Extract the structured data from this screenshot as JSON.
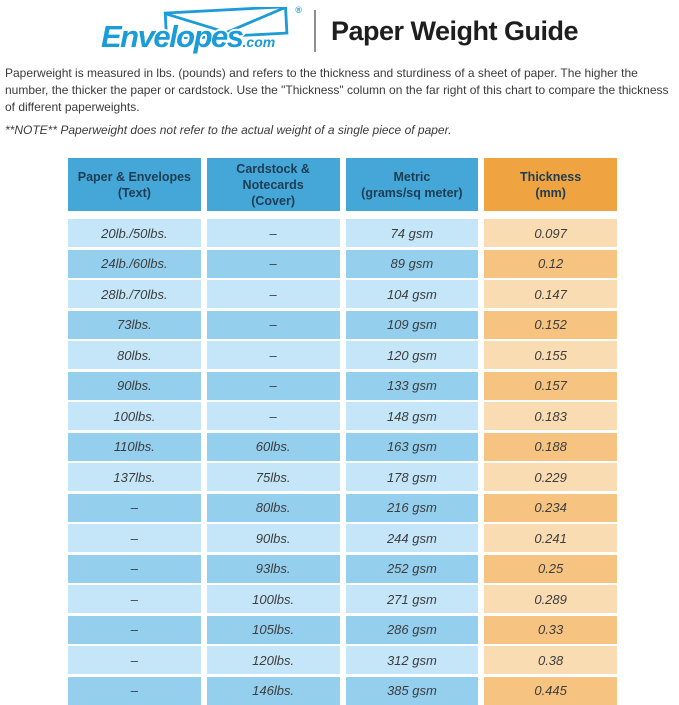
{
  "header": {
    "logo": {
      "brand": "Envelopes",
      "tld": ".com",
      "registered": "®",
      "color": "#1b9cd8"
    },
    "title": "Paper Weight Guide"
  },
  "intro": {
    "paragraph": "Paperweight is measured in lbs. (pounds) and refers to the thickness and sturdiness of a sheet of paper. The higher the number, the thicker the paper or cardstock. Use the \"Thickness\" column on the far right of this chart to compare the thickness of different paperweights.",
    "note": "**NOTE** Paperweight does not refer to the actual weight of a single piece of paper."
  },
  "table": {
    "headers": [
      {
        "line1": "Paper & Envelopes",
        "line2": "(Text)"
      },
      {
        "line1": "Cardstock & Notecards",
        "line2": "(Cover)"
      },
      {
        "line1": "Metric",
        "line2": "(grams/sq meter)"
      },
      {
        "line1": "Thickness",
        "line2": "(mm)"
      }
    ],
    "rows": [
      [
        "20lb./50lbs.",
        "–",
        "74 gsm",
        "0.097"
      ],
      [
        "24lb./60lbs.",
        "–",
        "89 gsm",
        "0.12"
      ],
      [
        "28lb./70lbs.",
        "–",
        "104 gsm",
        "0.147"
      ],
      [
        "73lbs.",
        "–",
        "109 gsm",
        "0.152"
      ],
      [
        "80lbs.",
        "–",
        "120 gsm",
        "0.155"
      ],
      [
        "90lbs.",
        "–",
        "133 gsm",
        "0.157"
      ],
      [
        "100lbs.",
        "–",
        "148 gsm",
        "0.183"
      ],
      [
        "110lbs.",
        "60lbs.",
        "163 gsm",
        "0.188"
      ],
      [
        "137lbs.",
        "75lbs.",
        "178 gsm",
        "0.229"
      ],
      [
        "–",
        "80lbs.",
        "216 gsm",
        "0.234"
      ],
      [
        "–",
        "90lbs.",
        "244 gsm",
        "0.241"
      ],
      [
        "–",
        "93lbs.",
        "252 gsm",
        "0.25"
      ],
      [
        "–",
        "100lbs.",
        "271 gsm",
        "0.289"
      ],
      [
        "–",
        "105lbs.",
        "286 gsm",
        "0.33"
      ],
      [
        "–",
        "120lbs.",
        "312 gsm",
        "0.38"
      ],
      [
        "–",
        "146lbs.",
        "385 gsm",
        "0.445"
      ]
    ],
    "colors": {
      "header_blue": "#45a7d8",
      "header_orange": "#f0a341",
      "row_blue_light": "#c5e6f8",
      "row_blue_dark": "#95cfee",
      "row_orange_light": "#fadcb3",
      "row_orange_dark": "#f6c480",
      "header_text": "#1e3d52",
      "cell_text": "#3d3d3d"
    }
  }
}
